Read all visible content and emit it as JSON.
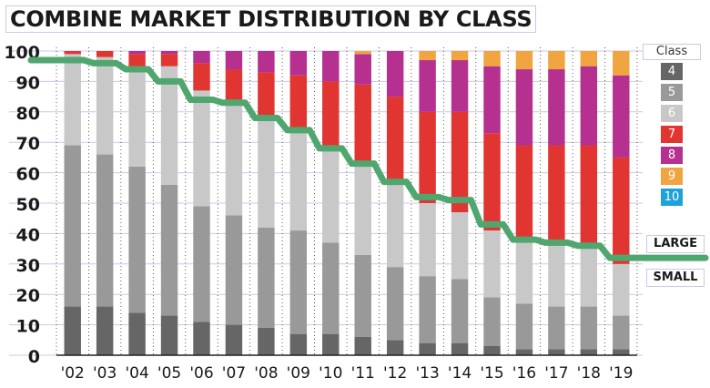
{
  "title": "COMBINE MARKET DISTRIBUTION BY CLASS",
  "legend": {
    "title": "Class",
    "items": [
      {
        "label": "4",
        "color": "#666666"
      },
      {
        "label": "5",
        "color": "#999999"
      },
      {
        "label": "6",
        "color": "#c8c8c8"
      },
      {
        "label": "7",
        "color": "#e03530"
      },
      {
        "label": "8",
        "color": "#b5308f"
      },
      {
        "label": "9",
        "color": "#f0a540"
      },
      {
        "label": "10",
        "color": "#1fa2dc"
      }
    ]
  },
  "annotations": {
    "large": "LARGE",
    "small": "SMALL"
  },
  "chart_data": {
    "type": "bar",
    "stacked": true,
    "title": "COMBINE MARKET DISTRIBUTION BY CLASS",
    "xlabel": "",
    "ylabel": "",
    "ylim": [
      0,
      100
    ],
    "yticks": [
      0,
      10,
      20,
      30,
      40,
      50,
      60,
      70,
      80,
      90,
      100
    ],
    "categories": [
      "'02",
      "'03",
      "'04",
      "'05",
      "'06",
      "'07",
      "'08",
      "'09",
      "'10",
      "'11",
      "'12",
      "'13",
      "'14",
      "'15",
      "'16",
      "'17",
      "'18",
      "'19"
    ],
    "series": [
      {
        "name": "4",
        "color": "#666666",
        "values": [
          16,
          16,
          14,
          13,
          11,
          10,
          9,
          7,
          7,
          6,
          5,
          4,
          4,
          3,
          2,
          2,
          2,
          2
        ]
      },
      {
        "name": "5",
        "color": "#999999",
        "values": [
          53,
          50,
          48,
          43,
          38,
          36,
          33,
          34,
          30,
          27,
          24,
          22,
          21,
          16,
          15,
          14,
          14,
          11
        ]
      },
      {
        "name": "6",
        "color": "#c8c8c8",
        "values": [
          30,
          32,
          32,
          39,
          38,
          38,
          37,
          33,
          31,
          30,
          27,
          24,
          22,
          22,
          20,
          20,
          19,
          17
        ]
      },
      {
        "name": "7",
        "color": "#e03530",
        "values": [
          1,
          2,
          5,
          4,
          9,
          10,
          14,
          18,
          22,
          26,
          29,
          30,
          33,
          32,
          32,
          33,
          34,
          35
        ]
      },
      {
        "name": "8",
        "color": "#b5308f",
        "values": [
          0,
          0,
          1,
          1,
          4,
          6,
          7,
          8,
          10,
          10,
          15,
          17,
          17,
          22,
          25,
          25,
          26,
          27
        ]
      },
      {
        "name": "9",
        "color": "#f0a540",
        "values": [
          0,
          0,
          0,
          0,
          0,
          0,
          0,
          0,
          0,
          1,
          0,
          3,
          3,
          5,
          6,
          6,
          5,
          8
        ]
      },
      {
        "name": "10",
        "color": "#1fa2dc",
        "values": [
          0,
          0,
          0,
          0,
          0,
          0,
          0,
          0,
          0,
          0,
          0,
          0,
          0,
          0,
          0,
          0,
          0,
          0
        ]
      }
    ],
    "line": {
      "color": "#4fa66e",
      "values": [
        97,
        96,
        94,
        90,
        84,
        83,
        78,
        74,
        68,
        63,
        57,
        52,
        51,
        43,
        38,
        37,
        36,
        32
      ]
    },
    "grid": true,
    "legend_position": "right"
  }
}
